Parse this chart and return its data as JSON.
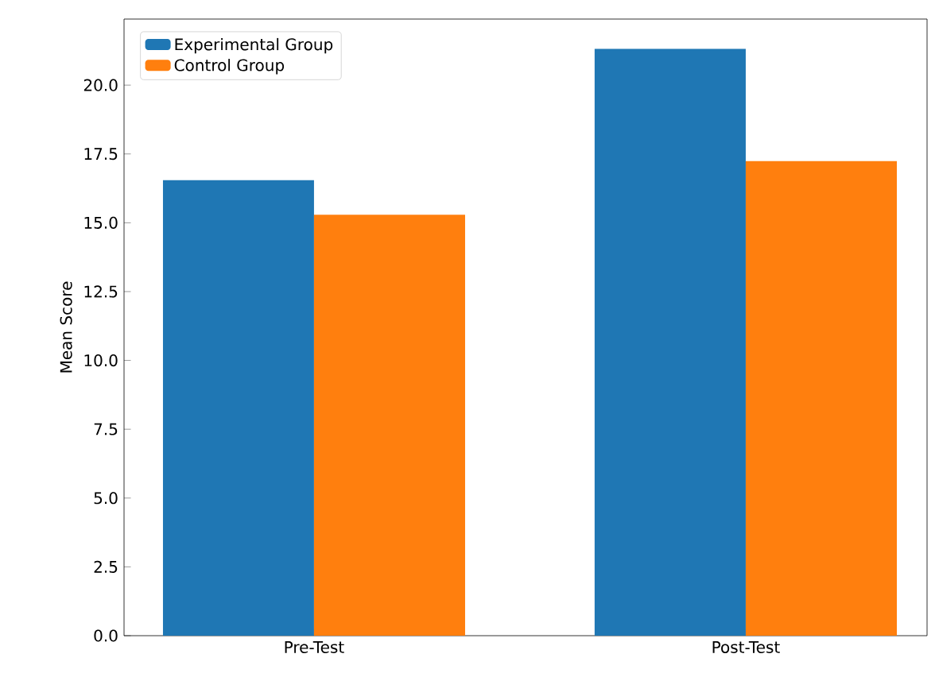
{
  "chart_data": {
    "type": "bar",
    "ylabel": "Mean Score",
    "categories": [
      "Pre-Test",
      "Post-Test"
    ],
    "series": [
      {
        "name": "Experimental Group",
        "color": "#1f77b4",
        "values": [
          16.55,
          21.32
        ]
      },
      {
        "name": "Control Group",
        "color": "#ff7f0e",
        "values": [
          15.29,
          17.24
        ]
      }
    ],
    "ylim": [
      0,
      22.4
    ],
    "yticks": [
      {
        "value": 0,
        "label": "0.0"
      },
      {
        "value": 2.5,
        "label": "2.5"
      },
      {
        "value": 5,
        "label": "5.0"
      },
      {
        "value": 7.5,
        "label": "7.5"
      },
      {
        "value": 10,
        "label": "10.0"
      },
      {
        "value": 12.5,
        "label": "12.5"
      },
      {
        "value": 15,
        "label": "15.0"
      },
      {
        "value": 17.5,
        "label": "17.5"
      },
      {
        "value": 20,
        "label": "20.0"
      }
    ],
    "grid": false,
    "legend": "top left"
  }
}
